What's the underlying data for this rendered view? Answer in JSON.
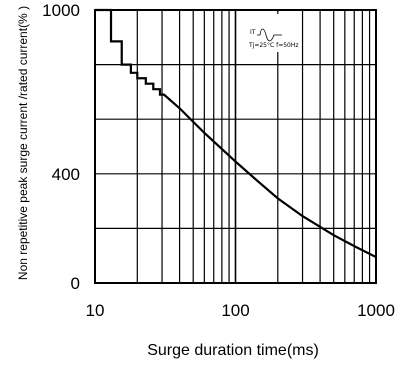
{
  "chart_data": {
    "type": "line",
    "xlabel": "Surge duration time(ms)",
    "ylabel": "Non repetitive peak surge current /rated current(% )",
    "x_scale": "log",
    "xlim": [
      10,
      1000
    ],
    "ylim": [
      0,
      1000
    ],
    "x_ticks": [
      {
        "value": 10,
        "label": "10"
      },
      {
        "value": 100,
        "label": "100"
      },
      {
        "value": 1000,
        "label": "1000"
      }
    ],
    "y_ticks": [
      {
        "value": 0,
        "label": "0"
      },
      {
        "value": 400,
        "label": "400"
      },
      {
        "value": 1000,
        "label": "1000"
      }
    ],
    "y_gridlines": [
      0,
      200,
      400,
      600,
      800,
      1000
    ],
    "grid": true,
    "inset": {
      "line1": "IT",
      "line2": "Tj=25°C f=50Hz"
    },
    "series": [
      {
        "values": [
          {
            "x": 10,
            "y": 1000
          },
          {
            "x": 13,
            "y": 1000
          },
          {
            "x": 13,
            "y": 885
          },
          {
            "x": 15.5,
            "y": 885
          },
          {
            "x": 15.5,
            "y": 800
          },
          {
            "x": 18,
            "y": 800
          },
          {
            "x": 18,
            "y": 770
          },
          {
            "x": 20,
            "y": 770
          },
          {
            "x": 20,
            "y": 750
          },
          {
            "x": 23,
            "y": 750
          },
          {
            "x": 23,
            "y": 730
          },
          {
            "x": 26,
            "y": 730
          },
          {
            "x": 26,
            "y": 710
          },
          {
            "x": 29,
            "y": 710
          },
          {
            "x": 29,
            "y": 690
          },
          {
            "x": 31,
            "y": 690
          },
          {
            "x": 40,
            "y": 640
          },
          {
            "x": 60,
            "y": 550
          },
          {
            "x": 100,
            "y": 445
          },
          {
            "x": 150,
            "y": 365
          },
          {
            "x": 200,
            "y": 310
          },
          {
            "x": 300,
            "y": 245
          },
          {
            "x": 500,
            "y": 175
          },
          {
            "x": 700,
            "y": 135
          },
          {
            "x": 1000,
            "y": 95
          }
        ]
      }
    ]
  }
}
